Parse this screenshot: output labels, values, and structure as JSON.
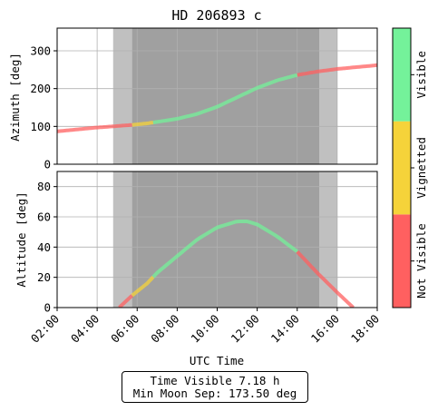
{
  "chart_data": {
    "type": "line",
    "title": "HD 206893 c",
    "xlabel": "UTC Time",
    "x_ticks": [
      "02:00",
      "04:00",
      "06:00",
      "08:00",
      "10:00",
      "12:00",
      "14:00",
      "16:00",
      "18:00"
    ],
    "xlim": [
      2,
      18
    ],
    "shading": {
      "twilight": [
        4.8,
        16.0
      ],
      "night": [
        5.75,
        15.1
      ]
    },
    "panels": [
      {
        "name": "azimuth",
        "ylabel": "Azimuth [deg]",
        "ylim": [
          0,
          360
        ],
        "y_ticks": [
          0,
          100,
          200,
          300
        ],
        "x": [
          2.0,
          3.0,
          4.0,
          5.0,
          5.75,
          6.5,
          7.0,
          8.0,
          9.0,
          10.0,
          11.0,
          12.0,
          13.0,
          14.0,
          15.0,
          16.0,
          17.0,
          18.0
        ],
        "y": [
          87,
          92,
          97,
          101,
          104,
          108,
          112,
          120,
          133,
          152,
          177,
          202,
          222,
          236,
          245,
          252,
          257,
          262
        ]
      },
      {
        "name": "altitude",
        "ylabel": "Altitude [deg]",
        "ylim": [
          0,
          90
        ],
        "y_ticks": [
          0,
          20,
          40,
          60,
          80
        ],
        "x": [
          5.1,
          5.75,
          6.5,
          7.0,
          8.0,
          9.0,
          10.0,
          11.0,
          11.5,
          12.0,
          13.0,
          14.0,
          15.0,
          16.0,
          16.8
        ],
        "y": [
          0,
          8,
          16,
          23,
          34,
          45,
          53,
          57,
          57,
          55,
          47,
          37,
          23,
          10,
          0
        ]
      }
    ],
    "visibility_segments": [
      {
        "from": 2.0,
        "to": 5.75,
        "status": "Not Visible"
      },
      {
        "from": 5.75,
        "to": 6.8,
        "status": "Vignetted"
      },
      {
        "from": 6.8,
        "to": 14.0,
        "status": "Visible"
      },
      {
        "from": 14.0,
        "to": 18.0,
        "status": "Not Visible"
      }
    ],
    "colorbar": {
      "labels": [
        "Not Visible",
        "Vignetted",
        "Visible"
      ],
      "colors": [
        "#ff6060",
        "#f5d33a",
        "#74f29a"
      ]
    },
    "time_visible": "Time Visible 7.18 h",
    "min_moon_sep": "Min Moon Sep: 173.50 deg"
  }
}
